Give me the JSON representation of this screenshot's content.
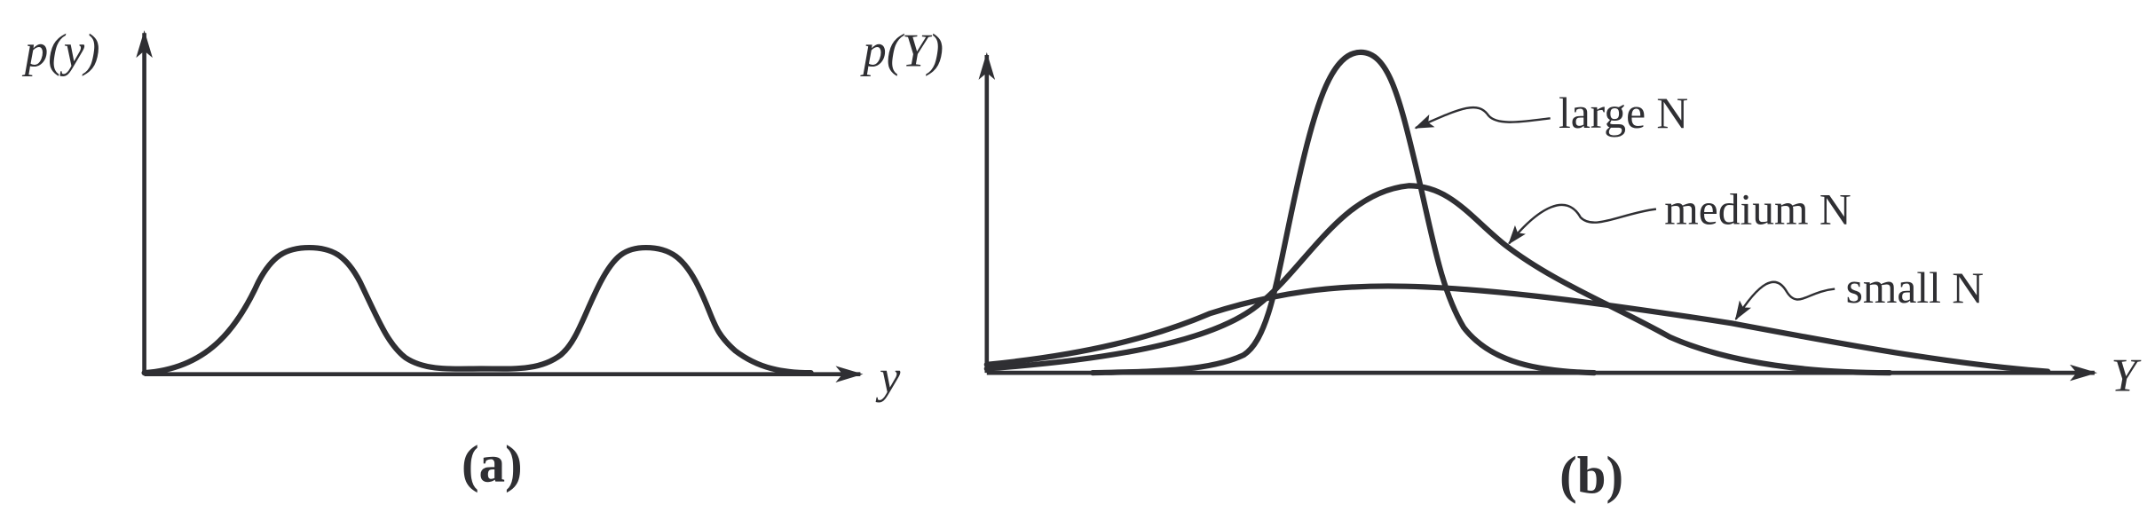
{
  "panel_a": {
    "y_axis_label": "p(y)",
    "x_axis_label": "y",
    "caption": "(a)"
  },
  "panel_b": {
    "y_axis_label": "p(Y)",
    "x_axis_label": "Y",
    "caption": "(b)",
    "curves": [
      {
        "label": "large N"
      },
      {
        "label": "medium N"
      },
      {
        "label": "small N"
      }
    ]
  }
}
